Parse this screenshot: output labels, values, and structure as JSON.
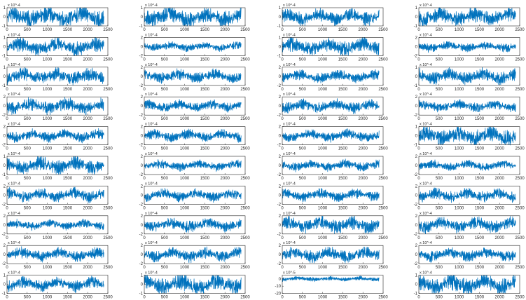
{
  "colors": {
    "line": "#0072BD",
    "axes": "#262626",
    "background": "#ffffff"
  },
  "chart_data": {
    "type": "line",
    "layout": "grid of small-multiple line plots, 4 columns x 10 rows, column-major order (subplots 1-10 down column 1)",
    "grid": false,
    "legend": "none",
    "x_ticks": [
      0,
      500,
      1000,
      1500,
      2000,
      2500
    ],
    "x_range": [
      0,
      2500
    ],
    "samples_per_trace": 2400,
    "series_description": "dense oscillating signal sampled from 0 to ~2400 with a slow modulation of ~2.5-3 cycles over the record; values below are approximate envelope readings",
    "subplots": [
      {
        "id": 1,
        "column": 1,
        "row": 1,
        "exponent_label": "x 10^-4",
        "y_ticks": [
          "-1",
          "0",
          "1"
        ],
        "y_range": [
          -1,
          1
        ],
        "peak_amplitude": 1.1,
        "noise_amplitude": 0.6
      },
      {
        "id": 2,
        "column": 1,
        "row": 2,
        "exponent_label": "x 10^-4",
        "y_ticks": [
          "-1",
          "0",
          "1"
        ],
        "y_range": [
          -1,
          1
        ],
        "peak_amplitude": 0.9,
        "noise_amplitude": 0.5
      },
      {
        "id": 3,
        "column": 1,
        "row": 3,
        "exponent_label": "x 10^-4",
        "y_ticks": [
          "-1",
          "0",
          "1"
        ],
        "y_range": [
          -1,
          1
        ],
        "peak_amplitude": 0.8,
        "noise_amplitude": 0.5
      },
      {
        "id": 4,
        "column": 1,
        "row": 4,
        "exponent_label": "x 10^-4",
        "y_ticks": [
          "-2",
          "0",
          "2"
        ],
        "y_range": [
          -2,
          2
        ],
        "peak_amplitude": 1.6,
        "noise_amplitude": 0.9
      },
      {
        "id": 5,
        "column": 1,
        "row": 5,
        "exponent_label": "x 10^-4",
        "y_ticks": [
          "-2",
          "0",
          "2"
        ],
        "y_range": [
          -2,
          2
        ],
        "peak_amplitude": 1.2,
        "noise_amplitude": 0.8
      },
      {
        "id": 6,
        "column": 1,
        "row": 6,
        "exponent_label": "x 10^-4",
        "y_ticks": [
          "-1",
          "0",
          "1"
        ],
        "y_range": [
          -1,
          1
        ],
        "peak_amplitude": 0.9,
        "noise_amplitude": 0.5
      },
      {
        "id": 7,
        "column": 1,
        "row": 7,
        "exponent_label": "x 10^-4",
        "y_ticks": [
          "-2",
          "0",
          "2"
        ],
        "y_range": [
          -2,
          2
        ],
        "peak_amplitude": 1.4,
        "noise_amplitude": 0.8
      },
      {
        "id": 8,
        "column": 1,
        "row": 8,
        "exponent_label": "x 10^-4",
        "y_ticks": [
          "-2",
          "0",
          "2"
        ],
        "y_range": [
          -2,
          2
        ],
        "peak_amplitude": 1.0,
        "noise_amplitude": 0.6
      },
      {
        "id": 9,
        "column": 1,
        "row": 9,
        "exponent_label": "x 10^-4",
        "y_ticks": [
          "-2",
          "0",
          "2"
        ],
        "y_range": [
          -2,
          2
        ],
        "peak_amplitude": 1.3,
        "noise_amplitude": 0.8
      },
      {
        "id": 10,
        "column": 1,
        "row": 10,
        "exponent_label": "x 10^-4",
        "y_ticks": [
          "-1",
          "0",
          "1"
        ],
        "y_range": [
          -1,
          1
        ],
        "peak_amplitude": 0.7,
        "noise_amplitude": 0.4
      },
      {
        "id": 11,
        "column": 2,
        "row": 1,
        "exponent_label": "x 10^-4",
        "y_ticks": [
          "-1",
          "0",
          "1"
        ],
        "y_range": [
          -1,
          1
        ],
        "peak_amplitude": 1.0,
        "noise_amplitude": 0.6
      },
      {
        "id": 12,
        "column": 2,
        "row": 2,
        "exponent_label": "x 10^-4",
        "y_ticks": [
          "-2",
          "0",
          "2"
        ],
        "y_range": [
          -2,
          2
        ],
        "peak_amplitude": 0.9,
        "noise_amplitude": 0.6
      },
      {
        "id": 13,
        "column": 2,
        "row": 3,
        "exponent_label": "x 10^-4",
        "y_ticks": [
          "-2",
          "0",
          "2"
        ],
        "y_range": [
          -2,
          2
        ],
        "peak_amplitude": 1.3,
        "noise_amplitude": 0.8
      },
      {
        "id": 14,
        "column": 2,
        "row": 4,
        "exponent_label": "x 10^-4",
        "y_ticks": [
          "-2",
          "0",
          "2"
        ],
        "y_range": [
          -2,
          2
        ],
        "peak_amplitude": 1.1,
        "noise_amplitude": 0.7
      },
      {
        "id": 15,
        "column": 2,
        "row": 5,
        "exponent_label": "x 10^-4",
        "y_ticks": [
          "-2",
          "0",
          "2"
        ],
        "y_range": [
          -2,
          2
        ],
        "peak_amplitude": 1.2,
        "noise_amplitude": 0.7
      },
      {
        "id": 16,
        "column": 2,
        "row": 6,
        "exponent_label": "x 10^-4",
        "y_ticks": [
          "-2",
          "0",
          "2"
        ],
        "y_range": [
          -2,
          2
        ],
        "peak_amplitude": 1.0,
        "noise_amplitude": 0.6
      },
      {
        "id": 17,
        "column": 2,
        "row": 7,
        "exponent_label": "x 10^-4",
        "y_ticks": [
          "-2",
          "0",
          "2"
        ],
        "y_range": [
          -2,
          2
        ],
        "peak_amplitude": 1.2,
        "noise_amplitude": 0.7
      },
      {
        "id": 18,
        "column": 2,
        "row": 8,
        "exponent_label": "x 10^-4",
        "y_ticks": [
          "-2",
          "0",
          "2"
        ],
        "y_range": [
          -2,
          2
        ],
        "peak_amplitude": 1.3,
        "noise_amplitude": 0.8
      },
      {
        "id": 19,
        "column": 2,
        "row": 9,
        "exponent_label": "x 10^-4",
        "y_ticks": [
          "-2",
          "0",
          "2"
        ],
        "y_range": [
          -2,
          2
        ],
        "peak_amplitude": 1.4,
        "noise_amplitude": 0.8
      },
      {
        "id": 20,
        "column": 2,
        "row": 10,
        "exponent_label": "x 10^-4",
        "y_ticks": [
          "-1",
          "0",
          "1"
        ],
        "y_range": [
          -1,
          1
        ],
        "peak_amplitude": 1.0,
        "noise_amplitude": 0.7
      },
      {
        "id": 21,
        "column": 3,
        "row": 1,
        "exponent_label": "x 10^-4",
        "y_ticks": [
          "-1",
          "0",
          "1"
        ],
        "y_range": [
          -1,
          1
        ],
        "peak_amplitude": 0.8,
        "noise_amplitude": 0.5
      },
      {
        "id": 22,
        "column": 3,
        "row": 2,
        "exponent_label": "x 10^-4",
        "y_ticks": [
          "-1",
          "0",
          "1"
        ],
        "y_range": [
          -1,
          1
        ],
        "peak_amplitude": 0.9,
        "noise_amplitude": 0.5
      },
      {
        "id": 23,
        "column": 3,
        "row": 3,
        "exponent_label": "x 10^-4",
        "y_ticks": [
          "-2",
          "0",
          "2"
        ],
        "y_range": [
          -2,
          2
        ],
        "peak_amplitude": 1.2,
        "noise_amplitude": 0.8
      },
      {
        "id": 24,
        "column": 3,
        "row": 4,
        "exponent_label": "x 10^-4",
        "y_ticks": [
          "-2",
          "0",
          "2"
        ],
        "y_range": [
          -2,
          2
        ],
        "peak_amplitude": 1.3,
        "noise_amplitude": 0.8
      },
      {
        "id": 25,
        "column": 3,
        "row": 5,
        "exponent_label": "x 10^-4",
        "y_ticks": [
          "-2",
          "0",
          "2"
        ],
        "y_range": [
          -2,
          2
        ],
        "peak_amplitude": 1.2,
        "noise_amplitude": 0.7
      },
      {
        "id": 26,
        "column": 3,
        "row": 6,
        "exponent_label": "x 10^-4",
        "y_ticks": [
          "-2",
          "0",
          "2"
        ],
        "y_range": [
          -2,
          2
        ],
        "peak_amplitude": 1.1,
        "noise_amplitude": 0.6
      },
      {
        "id": 27,
        "column": 3,
        "row": 7,
        "exponent_label": "x 10^-4",
        "y_ticks": [
          "-2",
          "0",
          "2"
        ],
        "y_range": [
          -2,
          2
        ],
        "peak_amplitude": 1.2,
        "noise_amplitude": 0.7
      },
      {
        "id": 28,
        "column": 3,
        "row": 8,
        "exponent_label": "x 10^-4",
        "y_ticks": [
          "-2",
          "0",
          "2"
        ],
        "y_range": [
          -2,
          2
        ],
        "peak_amplitude": 1.7,
        "noise_amplitude": 0.9
      },
      {
        "id": 29,
        "column": 3,
        "row": 9,
        "exponent_label": "x 10^-4",
        "y_ticks": [
          "-2",
          "0",
          "2"
        ],
        "y_range": [
          -2,
          2
        ],
        "peak_amplitude": 1.5,
        "noise_amplitude": 0.9
      },
      {
        "id": 30,
        "column": 3,
        "row": 10,
        "exponent_label": "x 10^-5",
        "y_ticks": [
          "-20",
          "-10",
          "0"
        ],
        "y_range": [
          -20,
          5
        ],
        "peak_amplitude": 3.0,
        "noise_amplitude": 2.0
      },
      {
        "id": 31,
        "column": 4,
        "row": 1,
        "exponent_label": "x 10^-4",
        "y_ticks": [
          "-1",
          "0",
          "1"
        ],
        "y_range": [
          -1,
          1
        ],
        "peak_amplitude": 0.9,
        "noise_amplitude": 0.6
      },
      {
        "id": 32,
        "column": 4,
        "row": 2,
        "exponent_label": "x 10^-4",
        "y_ticks": [
          "-2",
          "0",
          "2"
        ],
        "y_range": [
          -2,
          2
        ],
        "peak_amplitude": 1.0,
        "noise_amplitude": 0.6
      },
      {
        "id": 33,
        "column": 4,
        "row": 3,
        "exponent_label": "x 10^-4",
        "y_ticks": [
          "-1",
          "0",
          "1"
        ],
        "y_range": [
          -1,
          1
        ],
        "peak_amplitude": 0.8,
        "noise_amplitude": 0.5
      },
      {
        "id": 34,
        "column": 4,
        "row": 4,
        "exponent_label": "x 10^-4",
        "y_ticks": [
          "-2",
          "0",
          "2"
        ],
        "y_range": [
          -2,
          2
        ],
        "peak_amplitude": 1.1,
        "noise_amplitude": 0.7
      },
      {
        "id": 35,
        "column": 4,
        "row": 5,
        "exponent_label": "x 10^-4",
        "y_ticks": [
          "-1",
          "0",
          "1"
        ],
        "y_range": [
          -1,
          1
        ],
        "peak_amplitude": 1.0,
        "noise_amplitude": 0.6
      },
      {
        "id": 36,
        "column": 4,
        "row": 6,
        "exponent_label": "x 10^-4",
        "y_ticks": [
          "-2",
          "0",
          "2"
        ],
        "y_range": [
          -2,
          2
        ],
        "peak_amplitude": 1.0,
        "noise_amplitude": 0.6
      },
      {
        "id": 37,
        "column": 4,
        "row": 7,
        "exponent_label": "x 10^-4",
        "y_ticks": [
          "-2",
          "0",
          "2"
        ],
        "y_range": [
          -2,
          2
        ],
        "peak_amplitude": 1.3,
        "noise_amplitude": 0.8
      },
      {
        "id": 38,
        "column": 4,
        "row": 8,
        "exponent_label": "x 10^-4",
        "y_ticks": [
          "-2",
          "0",
          "2"
        ],
        "y_range": [
          -2,
          2
        ],
        "peak_amplitude": 1.5,
        "noise_amplitude": 0.9
      },
      {
        "id": 39,
        "column": 4,
        "row": 9,
        "exponent_label": "x 10^-4",
        "y_ticks": [
          "-2",
          "0",
          "2"
        ],
        "y_range": [
          -2,
          2
        ],
        "peak_amplitude": 1.3,
        "noise_amplitude": 0.8
      },
      {
        "id": 40,
        "column": 4,
        "row": 10,
        "exponent_label": "x 10^-4",
        "y_ticks": [
          "-1",
          "0",
          "1"
        ],
        "y_range": [
          -1,
          1
        ],
        "peak_amplitude": 1.0,
        "noise_amplitude": 0.7
      }
    ]
  }
}
